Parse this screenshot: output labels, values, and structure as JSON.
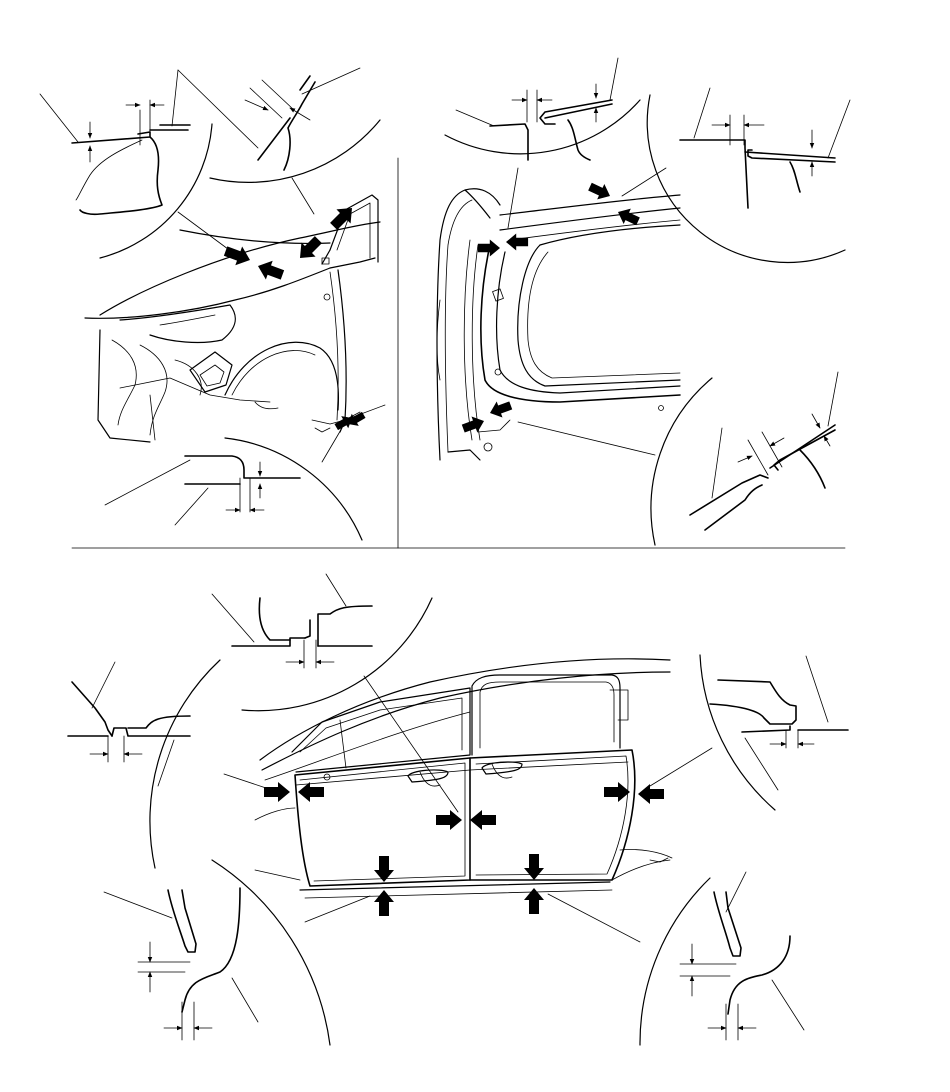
{
  "diagram": {
    "views": [
      {
        "id": "front-fender-view"
      },
      {
        "id": "tailgate-opening-view"
      },
      {
        "id": "side-doors-view"
      }
    ],
    "detail_circles": [
      {
        "id": "fender-top-gap"
      },
      {
        "id": "fender-windshield-gap"
      },
      {
        "id": "fender-lower-rear-gap"
      },
      {
        "id": "tailgate-upper-left-gap"
      },
      {
        "id": "tailgate-upper-right-gap"
      },
      {
        "id": "tailgate-lower-side-gap"
      },
      {
        "id": "front-door-front-gap"
      },
      {
        "id": "door-center-gap"
      },
      {
        "id": "rear-door-rear-gap"
      },
      {
        "id": "front-door-bottom-gap"
      },
      {
        "id": "rear-door-bottom-gap"
      }
    ],
    "colors": {
      "ink": "#000000",
      "paper": "#ffffff"
    }
  }
}
